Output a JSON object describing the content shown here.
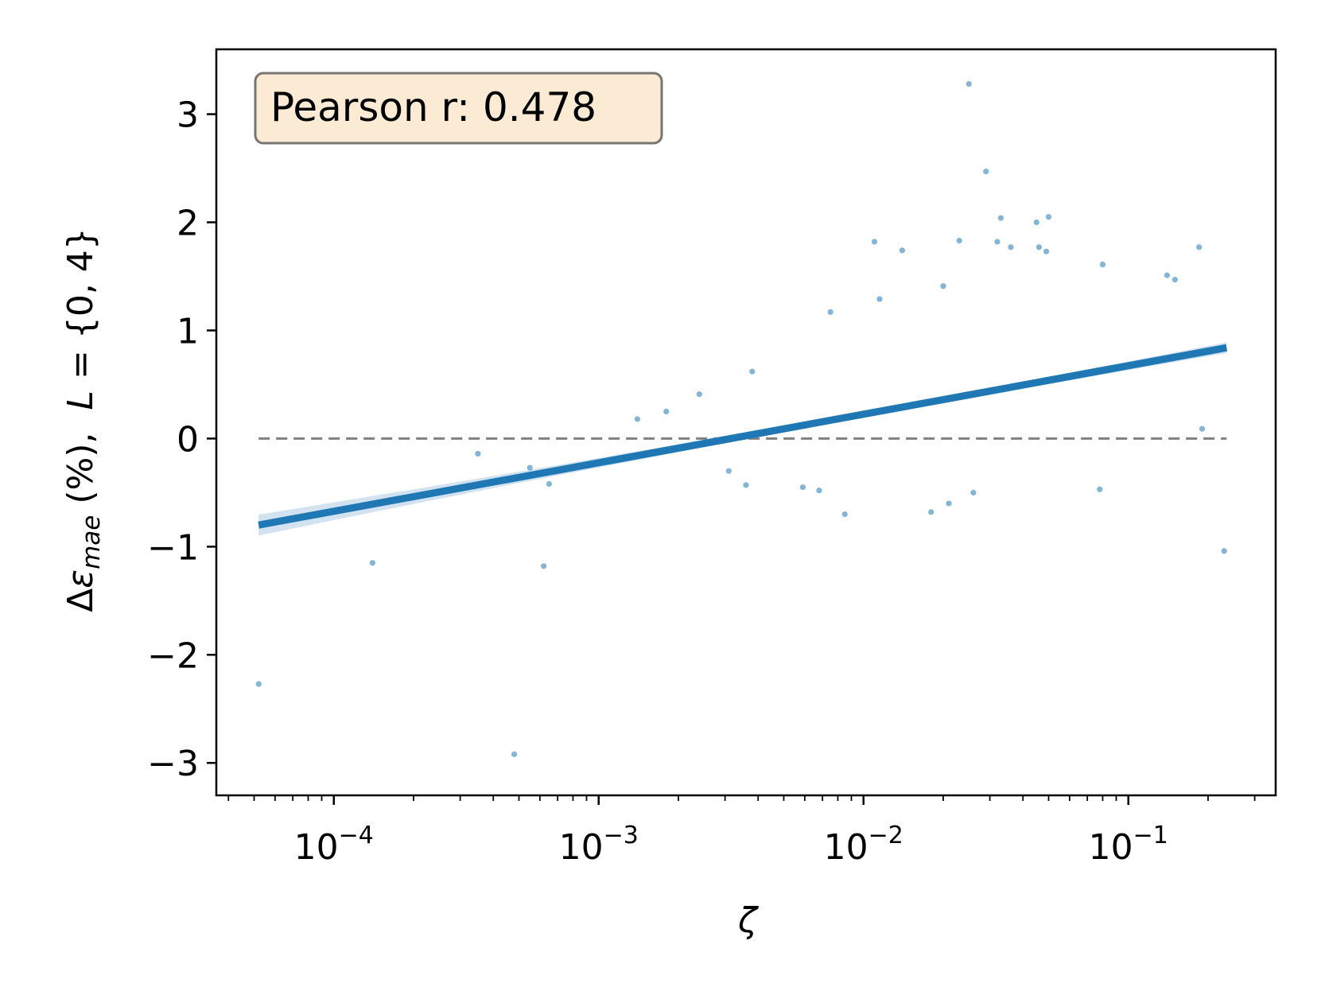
{
  "chart_data": {
    "type": "scatter",
    "xscale": "log",
    "xlim": [
      3.6e-05,
      0.36
    ],
    "ylim": [
      -3.3,
      3.6
    ],
    "x_ticks": [
      {
        "value": 0.0001,
        "base": "10",
        "exp": "−4"
      },
      {
        "value": 0.001,
        "base": "10",
        "exp": "−3"
      },
      {
        "value": 0.01,
        "base": "10",
        "exp": "−2"
      },
      {
        "value": 0.1,
        "base": "10",
        "exp": "−1"
      }
    ],
    "y_ticks": [
      {
        "value": 3,
        "label": "3"
      },
      {
        "value": 2,
        "label": "2"
      },
      {
        "value": 1,
        "label": "1"
      },
      {
        "value": 0,
        "label": "0"
      },
      {
        "value": -1,
        "label": "−1"
      },
      {
        "value": -2,
        "label": "−2"
      },
      {
        "value": -3,
        "label": "−3"
      }
    ],
    "xlabel": "ζ",
    "ylabel": {
      "delta": "Δ",
      "symbol": "ε",
      "subscript": "mae",
      "middle": " (%),  ",
      "L": "L",
      "rest": " = {0, 4}"
    },
    "annotation": "Pearson r: 0.478",
    "reference_line": {
      "y": 0,
      "style": "dashed",
      "color": "#808080"
    },
    "fit_line": {
      "x": [
        5.2e-05,
        0.235
      ],
      "y": [
        -0.8,
        0.84
      ],
      "color": "#1f77b4"
    },
    "grid": false,
    "colors": {
      "points": "#1f77b4",
      "fit": "#1f77b4",
      "band": "#aecbe6",
      "annotation_fill": "#fbebd5",
      "annotation_border": "#7a7470"
    },
    "series": [
      {
        "points": [
          {
            "x": 5.2e-05,
            "y": -2.27
          },
          {
            "x": 0.00014,
            "y": -1.15
          },
          {
            "x": 0.00035,
            "y": -0.14
          },
          {
            "x": 0.00048,
            "y": -2.92
          },
          {
            "x": 0.00055,
            "y": -0.27
          },
          {
            "x": 0.00062,
            "y": -1.18
          },
          {
            "x": 0.00065,
            "y": -0.42
          },
          {
            "x": 0.0014,
            "y": 0.18
          },
          {
            "x": 0.0018,
            "y": 0.25
          },
          {
            "x": 0.0024,
            "y": 0.41
          },
          {
            "x": 0.0031,
            "y": -0.3
          },
          {
            "x": 0.0036,
            "y": -0.43
          },
          {
            "x": 0.0038,
            "y": 0.62
          },
          {
            "x": 0.0059,
            "y": -0.45
          },
          {
            "x": 0.0068,
            "y": -0.48
          },
          {
            "x": 0.0075,
            "y": 1.17
          },
          {
            "x": 0.0085,
            "y": -0.7
          },
          {
            "x": 0.011,
            "y": 1.82
          },
          {
            "x": 0.0115,
            "y": 1.29
          },
          {
            "x": 0.014,
            "y": 1.74
          },
          {
            "x": 0.018,
            "y": -0.68
          },
          {
            "x": 0.02,
            "y": 1.41
          },
          {
            "x": 0.021,
            "y": -0.6
          },
          {
            "x": 0.023,
            "y": 1.83
          },
          {
            "x": 0.025,
            "y": 3.28
          },
          {
            "x": 0.026,
            "y": -0.5
          },
          {
            "x": 0.029,
            "y": 2.47
          },
          {
            "x": 0.033,
            "y": 2.04
          },
          {
            "x": 0.032,
            "y": 1.82
          },
          {
            "x": 0.036,
            "y": 1.77
          },
          {
            "x": 0.045,
            "y": 2.0
          },
          {
            "x": 0.046,
            "y": 1.77
          },
          {
            "x": 0.049,
            "y": 1.73
          },
          {
            "x": 0.05,
            "y": 2.05
          },
          {
            "x": 0.078,
            "y": -0.47
          },
          {
            "x": 0.08,
            "y": 1.61
          },
          {
            "x": 0.14,
            "y": 1.51
          },
          {
            "x": 0.15,
            "y": 1.47
          },
          {
            "x": 0.185,
            "y": 1.77
          },
          {
            "x": 0.19,
            "y": 0.09
          },
          {
            "x": 0.23,
            "y": -1.04
          }
        ]
      }
    ]
  }
}
